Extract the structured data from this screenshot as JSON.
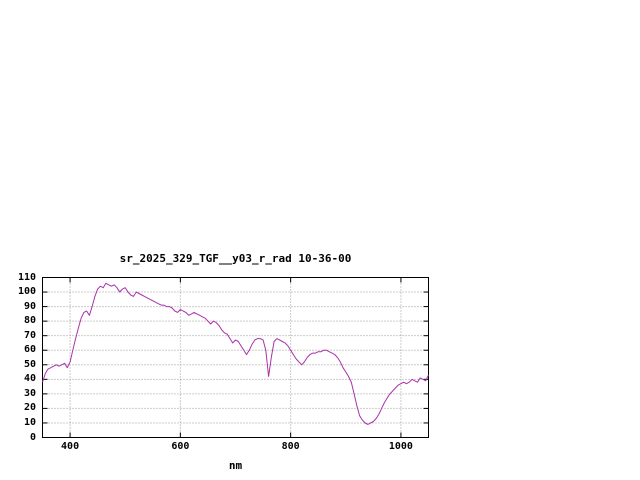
{
  "page": {
    "background": "#ffffff"
  },
  "chart_data": {
    "type": "line",
    "title": "sr_2025_329_TGF__y03_r_rad 10-36-00",
    "xlabel": "nm",
    "ylabel": "",
    "xlim": [
      350,
      1050
    ],
    "ylim": [
      0,
      110
    ],
    "xticks": [
      400,
      600,
      800,
      1000
    ],
    "yticks": [
      0,
      10,
      20,
      30,
      40,
      50,
      60,
      70,
      80,
      90,
      100,
      110
    ],
    "grid": true,
    "legend": "none",
    "line_color": "#aa33aa",
    "axis_color": "#000000",
    "grid_color": "#999999",
    "series": [
      {
        "x": [
          350,
          355,
          360,
          365,
          370,
          375,
          380,
          385,
          390,
          395,
          400,
          405,
          410,
          415,
          420,
          425,
          430,
          435,
          440,
          445,
          450,
          455,
          460,
          465,
          470,
          475,
          480,
          485,
          490,
          495,
          500,
          505,
          510,
          515,
          520,
          525,
          530,
          535,
          540,
          545,
          550,
          555,
          560,
          565,
          570,
          575,
          580,
          585,
          590,
          595,
          600,
          605,
          610,
          615,
          620,
          625,
          630,
          635,
          640,
          645,
          650,
          655,
          660,
          665,
          670,
          675,
          680,
          685,
          690,
          695,
          700,
          705,
          710,
          715,
          720,
          725,
          730,
          735,
          740,
          745,
          750,
          755,
          760,
          765,
          770,
          775,
          780,
          785,
          790,
          795,
          800,
          805,
          810,
          815,
          820,
          825,
          830,
          835,
          840,
          845,
          850,
          855,
          860,
          865,
          870,
          875,
          880,
          885,
          890,
          895,
          900,
          905,
          910,
          915,
          920,
          925,
          930,
          935,
          940,
          945,
          950,
          955,
          960,
          965,
          970,
          975,
          980,
          985,
          990,
          995,
          1000,
          1005,
          1010,
          1015,
          1020,
          1025,
          1030,
          1035,
          1040,
          1045,
          1050
        ],
        "y": [
          38,
          44,
          47,
          48,
          49,
          50,
          49,
          50,
          51,
          48,
          52,
          60,
          68,
          75,
          82,
          86,
          87,
          84,
          90,
          97,
          102,
          104,
          103,
          106,
          105,
          104,
          105,
          103,
          100,
          102,
          103,
          100,
          98,
          97,
          100,
          99,
          98,
          97,
          96,
          95,
          94,
          93,
          92,
          91,
          91,
          90,
          90,
          89,
          87,
          86,
          88,
          87,
          86,
          84,
          85,
          86,
          85,
          84,
          83,
          82,
          80,
          78,
          80,
          79,
          77,
          74,
          72,
          71,
          68,
          65,
          67,
          66,
          63,
          60,
          57,
          60,
          64,
          67,
          68,
          68,
          67,
          60,
          42,
          55,
          66,
          68,
          67,
          66,
          65,
          63,
          60,
          57,
          54,
          52,
          50,
          52,
          55,
          57,
          58,
          58,
          59,
          59,
          60,
          60,
          59,
          58,
          57,
          55,
          52,
          48,
          45,
          42,
          38,
          30,
          22,
          15,
          12,
          10,
          9,
          10,
          11,
          13,
          16,
          20,
          24,
          27,
          30,
          32,
          34,
          36,
          37,
          38,
          37,
          38,
          40,
          39,
          38,
          41,
          40,
          39,
          43
        ]
      }
    ]
  }
}
